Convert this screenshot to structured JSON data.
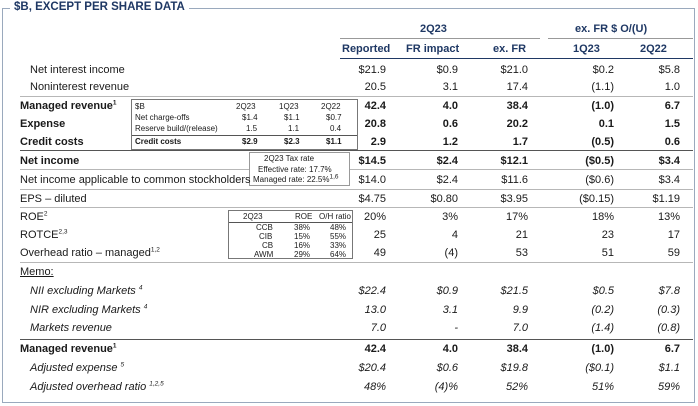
{
  "title": "$B, EXCEPT PER SHARE DATA",
  "headers": {
    "group_2q23": "2Q23",
    "group_exfr": "ex. FR $ O/(U)",
    "cols": [
      "Reported",
      "FR impact",
      "ex. FR",
      "1Q23",
      "2Q22"
    ]
  },
  "rows": [
    {
      "label": "Net interest income",
      "values": [
        "$21.9",
        "$0.9",
        "$21.0",
        "$0.2",
        "$5.8"
      ]
    },
    {
      "label": "Noninterest revenue",
      "values": [
        "20.5",
        "3.1",
        "17.4",
        "(1.1)",
        "1.0"
      ]
    },
    {
      "label": "Managed revenue",
      "sup": "1",
      "values": [
        "42.4",
        "4.0",
        "38.4",
        "(1.0)",
        "6.7"
      ]
    },
    {
      "label": "Expense",
      "values": [
        "20.8",
        "0.6",
        "20.2",
        "0.1",
        "1.5"
      ]
    },
    {
      "label": "Credit costs",
      "values": [
        "2.9",
        "1.2",
        "1.7",
        "(0.5)",
        "0.6"
      ]
    },
    {
      "label": "Net income",
      "values": [
        "$14.5",
        "$2.4",
        "$12.1",
        "($0.5)",
        "$3.4"
      ]
    },
    {
      "label": "Net income applicable to common stockholders",
      "values": [
        "$14.0",
        "$2.4",
        "$11.6",
        "($0.6)",
        "$3.4"
      ]
    },
    {
      "label": "EPS – diluted",
      "values": [
        "$4.75",
        "$0.80",
        "$3.95",
        "($0.15)",
        "$1.19"
      ]
    },
    {
      "label": "ROE",
      "sup": "2",
      "values": [
        "20%",
        "3%",
        "17%",
        "18%",
        "13%"
      ]
    },
    {
      "label": "ROTCE",
      "sup": "2,3",
      "values": [
        "25",
        "4",
        "21",
        "23",
        "17"
      ]
    },
    {
      "label": "Overhead ratio – managed",
      "sup": "1,2",
      "values": [
        "49",
        "(4)",
        "53",
        "51",
        "59"
      ]
    },
    {
      "label": "Memo:"
    },
    {
      "label": "NII excluding Markets",
      "sup": "4",
      "values": [
        "$22.4",
        "$0.9",
        "$21.5",
        "$0.5",
        "$7.8"
      ]
    },
    {
      "label": "NIR excluding Markets",
      "sup": "4",
      "values": [
        "13.0",
        "3.1",
        "9.9",
        "(0.2)",
        "(0.3)"
      ]
    },
    {
      "label": "Markets revenue",
      "values": [
        "7.0",
        "-",
        "7.0",
        "(1.4)",
        "(0.8)"
      ]
    },
    {
      "label": "Managed revenue",
      "sup": "1",
      "values": [
        "42.4",
        "4.0",
        "38.4",
        "(1.0)",
        "6.7"
      ]
    },
    {
      "label": "Adjusted expense",
      "sup": "5",
      "values": [
        "$20.4",
        "$0.6",
        "$19.8",
        "($0.1)",
        "$1.1"
      ]
    },
    {
      "label": "Adjusted overhead ratio",
      "sup": "1,2,5",
      "values": [
        "48%",
        "(4)%",
        "52%",
        "51%",
        "59%"
      ]
    }
  ],
  "credit_box": {
    "headers": [
      "$B",
      "2Q23",
      "1Q23",
      "2Q22"
    ],
    "rows": [
      [
        "Net charge-offs",
        "$1.4",
        "$1.1",
        "$0.7"
      ],
      [
        "Reserve build/(release)",
        "1.5",
        "1.1",
        "0.4"
      ],
      [
        "Credit costs",
        "$2.9",
        "$2.3",
        "$1.1"
      ]
    ]
  },
  "tax_box": {
    "title": "2Q23 Tax rate",
    "effective": "Effective rate: 17.7%",
    "managed": "Managed rate: 22.5%",
    "managed_sup": "1,6"
  },
  "roe_box": {
    "headers": [
      "2Q23",
      "ROE",
      "O/H ratio"
    ],
    "rows": [
      [
        "CCB",
        "38%",
        "48%"
      ],
      [
        "CIB",
        "15%",
        "55%"
      ],
      [
        "CB",
        "16%",
        "33%"
      ],
      [
        "AWM",
        "29%",
        "64%"
      ]
    ]
  }
}
